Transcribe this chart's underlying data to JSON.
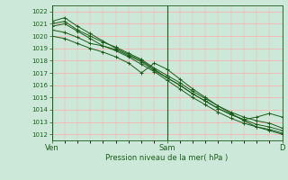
{
  "bg_color": "#cce8d8",
  "plot_bg_color": "#cce8d8",
  "grid_color": "#ffaaaa",
  "line_color": "#1a5c1a",
  "marker_color": "#1a5c1a",
  "ylim": [
    1011.5,
    1022.5
  ],
  "yticks": [
    1012,
    1013,
    1014,
    1015,
    1016,
    1017,
    1018,
    1019,
    1020,
    1021,
    1022
  ],
  "xlabel": "Pression niveau de la mer( hPa )",
  "xlabel_color": "#1a5c1a",
  "xtick_labels": [
    "Ven",
    "Sam",
    "D"
  ],
  "xtick_positions": [
    0.0,
    0.5,
    1.0
  ],
  "series": [
    [
      1020.5,
      1020.3,
      1019.9,
      1019.4,
      1019.2,
      1018.9,
      1018.4,
      1017.9,
      1017.2,
      1016.6,
      1016.0,
      1015.3,
      1014.7,
      1014.1,
      1013.6,
      1013.2,
      1012.8,
      1012.6,
      1012.3
    ],
    [
      1021.0,
      1021.2,
      1020.5,
      1020.0,
      1019.5,
      1019.1,
      1018.6,
      1018.1,
      1017.4,
      1016.8,
      1016.2,
      1015.5,
      1014.9,
      1014.3,
      1013.8,
      1013.4,
      1013.1,
      1012.9,
      1012.5
    ],
    [
      1021.2,
      1021.5,
      1020.8,
      1020.2,
      1019.6,
      1019.0,
      1018.5,
      1018.0,
      1017.3,
      1016.6,
      1016.0,
      1015.3,
      1014.7,
      1014.1,
      1013.6,
      1013.2,
      1013.4,
      1013.7,
      1013.4
    ],
    [
      1020.0,
      1019.8,
      1019.4,
      1019.0,
      1018.7,
      1018.3,
      1017.8,
      1017.0,
      1017.8,
      1017.3,
      1016.5,
      1015.7,
      1015.0,
      1014.3,
      1013.7,
      1013.1,
      1012.6,
      1012.3,
      1012.0
    ],
    [
      1020.8,
      1021.0,
      1020.4,
      1019.8,
      1019.2,
      1018.8,
      1018.3,
      1017.7,
      1017.1,
      1016.4,
      1015.7,
      1015.0,
      1014.4,
      1013.8,
      1013.3,
      1012.9,
      1012.6,
      1012.4,
      1012.1
    ]
  ],
  "x_values": [
    0.0,
    0.0556,
    0.1111,
    0.1667,
    0.2222,
    0.2778,
    0.3333,
    0.3889,
    0.4444,
    0.5,
    0.5556,
    0.6111,
    0.6667,
    0.7222,
    0.7778,
    0.8333,
    0.8889,
    0.9444,
    1.0
  ],
  "figsize": [
    3.2,
    2.0
  ],
  "dpi": 100
}
